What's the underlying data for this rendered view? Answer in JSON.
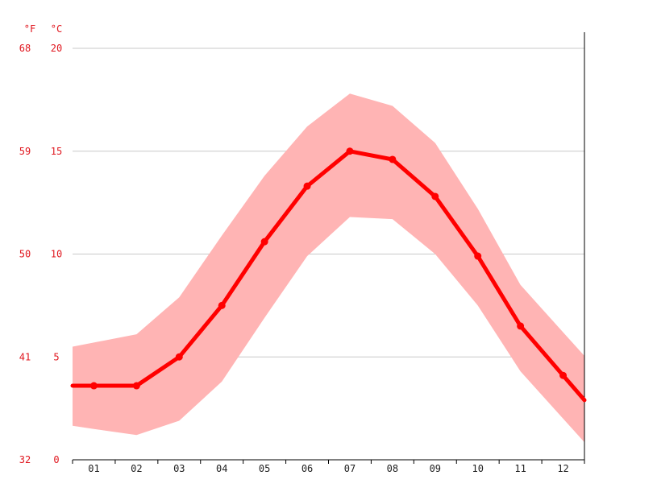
{
  "chart_data": {
    "type": "line",
    "title": "",
    "xlabel": "",
    "ylabel": "",
    "units": {
      "fahrenheit": "°F",
      "celsius": "°C"
    },
    "categories": [
      "01",
      "02",
      "03",
      "04",
      "05",
      "06",
      "07",
      "08",
      "09",
      "10",
      "11",
      "12"
    ],
    "x": [
      1,
      2,
      3,
      4,
      5,
      6,
      7,
      8,
      9,
      10,
      11,
      12
    ],
    "xlim": [
      0.5,
      12.5
    ],
    "ylim": [
      0,
      20
    ],
    "celsius_ticks": [
      "0",
      "5",
      "10",
      "15",
      "20"
    ],
    "fahrenheit_ticks": [
      "32",
      "41",
      "50",
      "59",
      "68"
    ],
    "grid": true,
    "series": [
      {
        "role": "mean",
        "values": [
          3.6,
          3.6,
          5.0,
          7.5,
          10.6,
          13.3,
          15.0,
          14.6,
          12.8,
          9.9,
          6.5,
          4.1
        ]
      },
      {
        "role": "band-high",
        "values": [
          5.7,
          6.1,
          7.9,
          10.9,
          13.8,
          16.2,
          17.8,
          17.2,
          15.4,
          12.2,
          8.5,
          6.2
        ]
      },
      {
        "role": "band-low",
        "values": [
          1.5,
          1.2,
          1.9,
          3.8,
          6.9,
          9.9,
          11.8,
          11.7,
          10.0,
          7.5,
          4.3,
          2.0
        ]
      }
    ],
    "colors": {
      "line": "#ff0000",
      "band": "#ffb4b4",
      "grid": "#c8c8c8",
      "axis_text": "#e0161e",
      "xtick_text": "#222222"
    }
  }
}
